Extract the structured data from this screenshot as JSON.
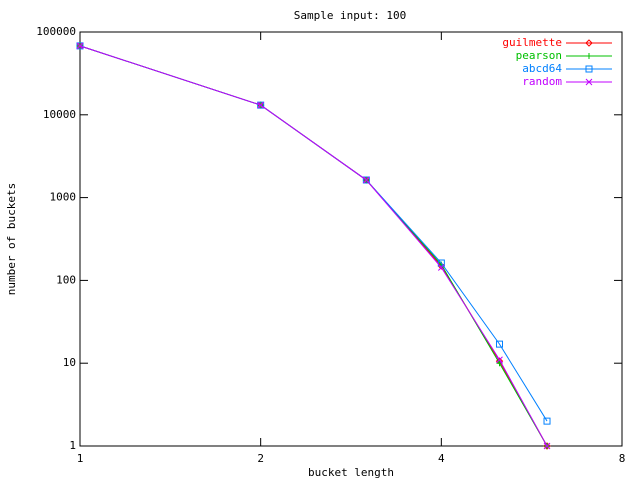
{
  "chart_data": {
    "type": "line",
    "title": "Sample input: 100",
    "x_label": "bucket length",
    "y_label": "number of buckets",
    "x": [
      1,
      2,
      3,
      4,
      5,
      6
    ],
    "xscale": "log",
    "yscale": "log",
    "xlim": [
      1,
      8
    ],
    "xticks": [
      1,
      2,
      4,
      8
    ],
    "ylim": [
      1,
      100000
    ],
    "yticks": [
      1,
      10,
      100,
      1000,
      10000,
      100000
    ],
    "legend": "top-right",
    "series": [
      {
        "name": "guilmette",
        "color": "#ff0000",
        "marker": "diamond",
        "values": [
          68000,
          13100,
          1630,
          149,
          10.6,
          1
        ]
      },
      {
        "name": "pearson",
        "color": "#00c000",
        "marker": "plus",
        "values": [
          68000,
          13100,
          1630,
          155,
          10,
          1
        ]
      },
      {
        "name": "abcd64",
        "color": "#0080ff",
        "marker": "square",
        "values": [
          68000,
          13100,
          1630,
          162,
          17,
          2
        ]
      },
      {
        "name": "random",
        "color": "#c000ff",
        "marker": "cross",
        "values": [
          68000,
          13100,
          1630,
          143,
          11,
          1
        ]
      }
    ]
  }
}
